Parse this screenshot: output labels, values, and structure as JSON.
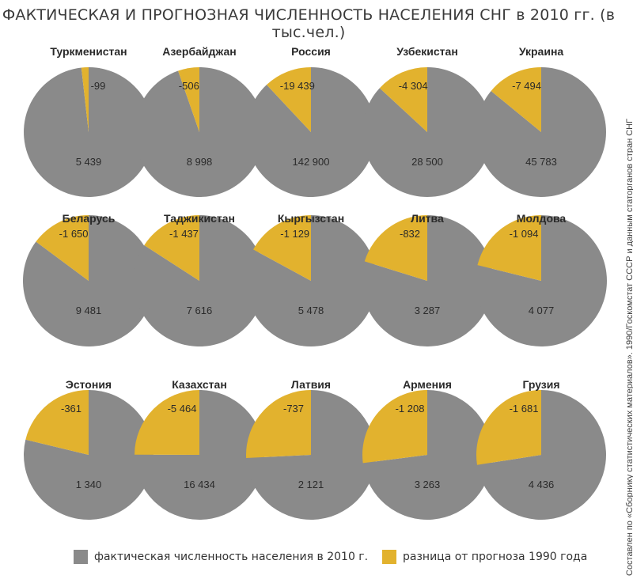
{
  "chart_data": {
    "type": "pie",
    "title": "ФАКТИЧЕСКАЯ И ПРОГНОЗНАЯ ЧИСЛЕННОСТЬ НАСЕЛЕНИЯ СНГ в 2010 гг. (в тыс.чел.)",
    "legend": [
      "фактическая численность населения в 2010 г.",
      "разница от прогноза 1990 года"
    ],
    "source": "Составлен по «Сборнику статистических материалов». 1990/Госкомстат СССР и данным статорганов стран СНГ",
    "colors": {
      "actual": "#8a8a8a",
      "diff": "#e2b22e"
    },
    "charts": [
      {
        "country": "Туркменистан",
        "actual": 5439,
        "actual_label": "5 439",
        "diff": -99,
        "diff_label": "-99"
      },
      {
        "country": "Азербайджан",
        "actual": 8998,
        "actual_label": "8 998",
        "diff": -506,
        "diff_label": "-506"
      },
      {
        "country": "Россия",
        "actual": 142900,
        "actual_label": "142 900",
        "diff": -19439,
        "diff_label": "-19 439"
      },
      {
        "country": "Узбекистан",
        "actual": 28500,
        "actual_label": "28 500",
        "diff": -4304,
        "diff_label": "-4 304"
      },
      {
        "country": "Украина",
        "actual": 45783,
        "actual_label": "45 783",
        "diff": -7494,
        "diff_label": "-7 494"
      },
      {
        "country": "Беларусь",
        "actual": 9481,
        "actual_label": "9 481",
        "diff": -1650,
        "diff_label": "-1 650"
      },
      {
        "country": "Таджикистан",
        "actual": 7616,
        "actual_label": "7 616",
        "diff": -1437,
        "diff_label": "-1 437"
      },
      {
        "country": "Кыргызстан",
        "actual": 5478,
        "actual_label": "5 478",
        "diff": -1129,
        "diff_label": "-1 129"
      },
      {
        "country": "Литва",
        "actual": 3287,
        "actual_label": "3 287",
        "diff": -832,
        "diff_label": "-832"
      },
      {
        "country": "Молдова",
        "actual": 4077,
        "actual_label": "4 077",
        "diff": -1094,
        "diff_label": "-1 094"
      },
      {
        "country": "Эстония",
        "actual": 1340,
        "actual_label": "1 340",
        "diff": -361,
        "diff_label": "-361"
      },
      {
        "country": "Казахстан",
        "actual": 16434,
        "actual_label": "16 434",
        "diff": -5464,
        "diff_label": "-5 464"
      },
      {
        "country": "Латвия",
        "actual": 2121,
        "actual_label": "2 121",
        "diff": -737,
        "diff_label": "-737"
      },
      {
        "country": "Армения",
        "actual": 3263,
        "actual_label": "3 263",
        "diff": -1208,
        "diff_label": "-1 208"
      },
      {
        "country": "Грузия",
        "actual": 4436,
        "actual_label": "4 436",
        "diff": -1681,
        "diff_label": "-1 681"
      }
    ]
  }
}
